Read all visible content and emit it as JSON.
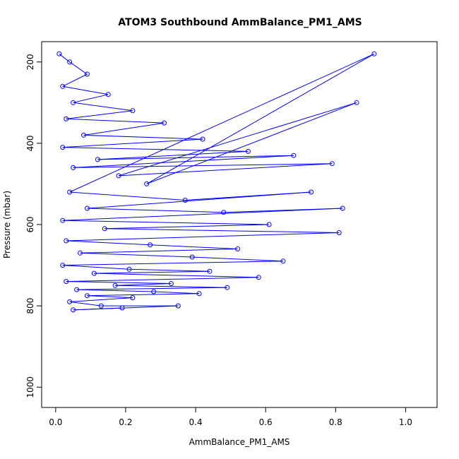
{
  "chart_data": {
    "type": "scatter",
    "title": "ATOM3 Southbound AmmBalance_PM1_AMS",
    "xlabel": "AmmBalance_PM1_AMS",
    "ylabel": "Pressure (mbar)",
    "xlim": [
      -0.04,
      1.09
    ],
    "ylim": [
      1050,
      150
    ],
    "y_reversed": true,
    "x_ticks": [
      "0.0",
      "0.2",
      "0.4",
      "0.6",
      "0.8",
      "1.0"
    ],
    "y_ticks": [
      "200",
      "400",
      "600",
      "800",
      "1000"
    ],
    "series_color": "#0000ff",
    "series": [
      {
        "points": [
          [
            0.01,
            180
          ],
          [
            0.04,
            200
          ],
          [
            0.09,
            230
          ],
          [
            0.02,
            260
          ],
          [
            0.15,
            280
          ],
          [
            0.05,
            300
          ],
          [
            0.22,
            320
          ],
          [
            0.03,
            340
          ],
          [
            0.31,
            350
          ],
          [
            0.08,
            380
          ],
          [
            0.42,
            390
          ],
          [
            0.02,
            410
          ],
          [
            0.55,
            420
          ],
          [
            0.12,
            440
          ],
          [
            0.68,
            430
          ],
          [
            0.05,
            460
          ],
          [
            0.79,
            450
          ],
          [
            0.18,
            480
          ],
          [
            0.86,
            300
          ],
          [
            0.26,
            500
          ],
          [
            0.91,
            180
          ],
          [
            0.04,
            520
          ],
          [
            0.37,
            540
          ],
          [
            0.73,
            520
          ],
          [
            0.09,
            560
          ],
          [
            0.48,
            570
          ],
          [
            0.82,
            560
          ],
          [
            0.02,
            590
          ],
          [
            0.61,
            600
          ],
          [
            0.14,
            610
          ],
          [
            0.81,
            620
          ],
          [
            0.03,
            640
          ],
          [
            0.27,
            650
          ],
          [
            0.52,
            660
          ],
          [
            0.07,
            670
          ],
          [
            0.39,
            680
          ],
          [
            0.65,
            690
          ],
          [
            0.02,
            700
          ],
          [
            0.21,
            710
          ],
          [
            0.44,
            715
          ],
          [
            0.11,
            720
          ],
          [
            0.58,
            730
          ],
          [
            0.03,
            740
          ],
          [
            0.33,
            745
          ],
          [
            0.17,
            750
          ],
          [
            0.49,
            755
          ],
          [
            0.06,
            760
          ],
          [
            0.28,
            765
          ],
          [
            0.41,
            770
          ],
          [
            0.09,
            775
          ],
          [
            0.22,
            780
          ],
          [
            0.04,
            790
          ],
          [
            0.13,
            800
          ],
          [
            0.35,
            800
          ],
          [
            0.05,
            810
          ],
          [
            0.19,
            805
          ]
        ]
      }
    ]
  }
}
